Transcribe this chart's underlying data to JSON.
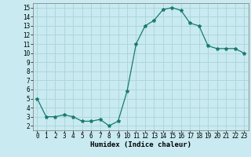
{
  "x": [
    0,
    1,
    2,
    3,
    4,
    5,
    6,
    7,
    8,
    9,
    10,
    11,
    12,
    13,
    14,
    15,
    16,
    17,
    18,
    19,
    20,
    21,
    22,
    23
  ],
  "y": [
    5.0,
    3.0,
    3.0,
    3.2,
    3.0,
    2.5,
    2.5,
    2.7,
    2.0,
    2.5,
    5.8,
    11.0,
    13.0,
    13.6,
    14.8,
    15.0,
    14.7,
    13.3,
    13.0,
    10.8,
    10.5,
    10.5,
    10.5,
    10.0
  ],
  "line_color": "#1a7a6e",
  "marker": "*",
  "marker_size": 3,
  "bg_color": "#c8eaf0",
  "grid_color": "#aad4dc",
  "xlabel": "Humidex (Indice chaleur)",
  "xlim": [
    -0.5,
    23.5
  ],
  "ylim": [
    1.5,
    15.5
  ],
  "yticks": [
    2,
    3,
    4,
    5,
    6,
    7,
    8,
    9,
    10,
    11,
    12,
    13,
    14,
    15
  ],
  "xticks": [
    0,
    1,
    2,
    3,
    4,
    5,
    6,
    7,
    8,
    9,
    10,
    11,
    12,
    13,
    14,
    15,
    16,
    17,
    18,
    19,
    20,
    21,
    22,
    23
  ],
  "font_family": "monospace",
  "tick_fontsize": 5.5,
  "xlabel_fontsize": 6.5
}
